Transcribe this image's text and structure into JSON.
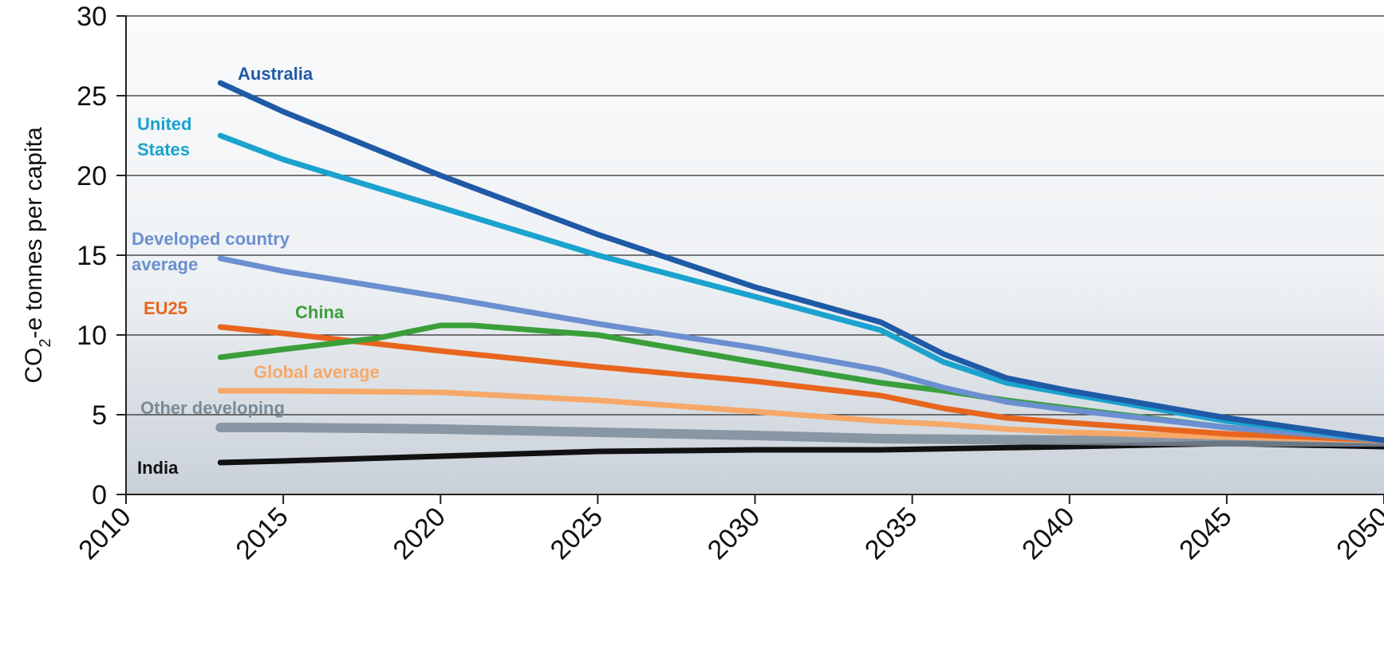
{
  "chart_data": {
    "type": "line",
    "title": "",
    "xlabel": "",
    "ylabel": "CO-e tonnes per capita",
    "ylabel_parts": {
      "before": "CO",
      "subscript": "2",
      "after": "-e tonnes per capita"
    },
    "xlim": [
      2010,
      2050
    ],
    "ylim": [
      0,
      30
    ],
    "x_ticks": [
      "2010",
      "2015",
      "2020",
      "2025",
      "2030",
      "2035",
      "2040",
      "2045",
      "2050"
    ],
    "y_ticks": [
      "0",
      "5",
      "10",
      "15",
      "20",
      "25",
      "30"
    ],
    "grid": true,
    "legend": "inline labels",
    "series": [
      {
        "name": "Australia",
        "color": "#1f5aa6",
        "x": [
          2013,
          2015,
          2020,
          2025,
          2030,
          2034,
          2036,
          2038,
          2040,
          2045,
          2050
        ],
        "y": [
          25.8,
          24.0,
          20.0,
          16.3,
          13.0,
          10.8,
          8.8,
          7.3,
          6.5,
          4.8,
          3.4
        ]
      },
      {
        "name": "United States",
        "label_lines": [
          "United",
          "States"
        ],
        "color": "#1ba2cf",
        "x": [
          2013,
          2015,
          2020,
          2025,
          2030,
          2034,
          2036,
          2038,
          2040,
          2045,
          2050
        ],
        "y": [
          22.5,
          21.0,
          18.0,
          15.0,
          12.4,
          10.3,
          8.3,
          7.0,
          6.3,
          4.6,
          3.4
        ]
      },
      {
        "name": "Developed country average",
        "label_lines": [
          "Developed country",
          "average"
        ],
        "color": "#6b8fd0",
        "x": [
          2013,
          2015,
          2020,
          2025,
          2030,
          2034,
          2036,
          2038,
          2040,
          2045,
          2050
        ],
        "y": [
          14.8,
          14.0,
          12.4,
          10.7,
          9.2,
          7.8,
          6.7,
          5.8,
          5.3,
          4.2,
          3.4
        ]
      },
      {
        "name": "China",
        "color": "#3a9f3a",
        "x": [
          2013,
          2015,
          2018,
          2020,
          2021,
          2025,
          2030,
          2034,
          2036,
          2038,
          2040,
          2045,
          2050
        ],
        "y": [
          8.6,
          9.1,
          9.8,
          10.6,
          10.6,
          10.0,
          8.3,
          7.0,
          6.5,
          5.9,
          5.4,
          4.2,
          3.4
        ]
      },
      {
        "name": "EU25",
        "color": "#e8651d",
        "x": [
          2013,
          2015,
          2020,
          2025,
          2030,
          2034,
          2036,
          2038,
          2040,
          2045,
          2050
        ],
        "y": [
          10.5,
          10.1,
          9.0,
          8.0,
          7.1,
          6.2,
          5.4,
          4.8,
          4.5,
          3.8,
          3.4
        ]
      },
      {
        "name": "Global average",
        "color": "#f6a868",
        "x": [
          2013,
          2015,
          2020,
          2025,
          2030,
          2034,
          2036,
          2038,
          2040,
          2045,
          2050
        ],
        "y": [
          6.5,
          6.5,
          6.4,
          5.9,
          5.2,
          4.6,
          4.4,
          4.1,
          3.9,
          3.6,
          3.4
        ]
      },
      {
        "name": "Other developing",
        "color": "#7b8a99",
        "x": [
          2013,
          2015,
          2020,
          2025,
          2030,
          2034,
          2040,
          2045,
          2050
        ],
        "y": [
          4.2,
          4.2,
          4.1,
          3.9,
          3.7,
          3.5,
          3.4,
          3.3,
          3.3
        ]
      },
      {
        "name": "India",
        "color": "#111111",
        "x": [
          2013,
          2015,
          2020,
          2025,
          2030,
          2034,
          2040,
          2045,
          2050
        ],
        "y": [
          2.0,
          2.1,
          2.4,
          2.7,
          2.8,
          2.8,
          3.0,
          3.2,
          3.0
        ]
      }
    ]
  }
}
